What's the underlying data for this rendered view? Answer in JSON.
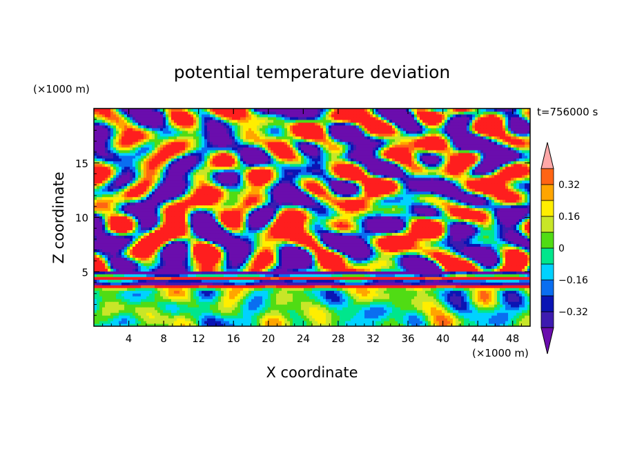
{
  "chart_data": {
    "type": "heatmap",
    "title": "potential temperature deviation",
    "xlabel": "X coordinate",
    "ylabel": "Z coordinate",
    "x_unit": "(×1000 m)",
    "y_unit": "(×1000 m)",
    "time_label": "t=756000 s",
    "xlim": [
      0,
      50
    ],
    "ylim": [
      0,
      20
    ],
    "xticks": [
      4,
      8,
      12,
      16,
      20,
      24,
      28,
      32,
      36,
      40,
      44,
      48
    ],
    "yticks": [
      5,
      10,
      15
    ],
    "colorbar": {
      "levels": [
        -0.4,
        -0.32,
        -0.24,
        -0.16,
        -0.08,
        0,
        0.08,
        0.16,
        0.24,
        0.32,
        0.4
      ],
      "labeled_ticks": [
        0.32,
        0.16,
        0,
        -0.16,
        -0.32
      ],
      "tick_labels": [
        "0.32",
        "0.16",
        "0",
        "−0.16",
        "−0.32"
      ],
      "colors": [
        "#6a0dad",
        "#3d1bb0",
        "#0a14b4",
        "#0a6ef0",
        "#00d2ff",
        "#00e68c",
        "#50dc14",
        "#c8e628",
        "#ffee00",
        "#ffa500",
        "#ff6414",
        "#ff1e1e",
        "#ffa8a8"
      ],
      "extend": "both"
    },
    "field_layers": [
      {
        "z_range": [
          0,
          3.4
        ],
        "description": "lower layer, weak deviations"
      },
      {
        "z_range": [
          3.4,
          5.0
        ],
        "description": "strong banded layer"
      },
      {
        "z_range": [
          5.0,
          20
        ],
        "description": "turbulent layered structure"
      }
    ]
  }
}
